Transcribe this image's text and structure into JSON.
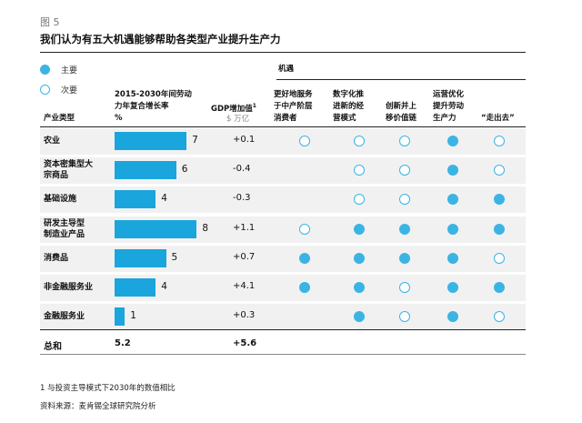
{
  "figure_label": "图 5",
  "title": "我们认为有五大机遇能够帮助各类型产业提升生产力",
  "legend": {
    "primary": "主要",
    "secondary": "次要"
  },
  "headers": {
    "opportunities_group": "机遇",
    "labor": [
      "2015-2030年间劳动",
      "力年复合增长率",
      "%"
    ],
    "gdp": "GDP增加值",
    "gdp_sup": "1",
    "gdp_unit": "$ 万亿",
    "industry_type": "产业类型",
    "opportunities": [
      [
        "更好地服务",
        "于中产阶层",
        "消费者"
      ],
      [
        "数字化推",
        "进新的经",
        "营模式"
      ],
      [
        "创新并上",
        "移价值链"
      ],
      [
        "运营优化",
        "提升劳动",
        "生产力"
      ],
      [
        "“走出去”"
      ]
    ]
  },
  "colors": {
    "accent": "#3bb4e4",
    "bar": "#1aa6dc"
  },
  "rows": [
    {
      "label": [
        "农业"
      ],
      "labor_growth": 7,
      "labor_label": "7",
      "gdp": "+0.1",
      "opps": [
        "secondary",
        "secondary",
        "secondary",
        "primary",
        "secondary"
      ]
    },
    {
      "label": [
        "资本密集型大",
        "宗商品"
      ],
      "labor_growth": 6,
      "labor_label": "6",
      "gdp": "-0.4",
      "opps": [
        "",
        "secondary",
        "secondary",
        "primary",
        "secondary"
      ]
    },
    {
      "label": [
        "基础设施"
      ],
      "labor_growth": 4,
      "labor_label": "4",
      "gdp": "-0.3",
      "opps": [
        "",
        "secondary",
        "secondary",
        "primary",
        "primary"
      ]
    },
    {
      "label": [
        "研发主导型",
        "制造业产品"
      ],
      "labor_growth": 8,
      "labor_label": "8",
      "gdp": "+1.1",
      "opps": [
        "secondary",
        "primary",
        "primary",
        "primary",
        "primary"
      ]
    },
    {
      "label": [
        "消费品"
      ],
      "labor_growth": 5,
      "labor_label": "5",
      "gdp": "+0.7",
      "opps": [
        "primary",
        "primary",
        "primary",
        "primary",
        "secondary"
      ]
    },
    {
      "label": [
        "非金融服务业"
      ],
      "labor_growth": 4,
      "labor_label": "4",
      "gdp": "+4.1",
      "opps": [
        "primary",
        "primary",
        "secondary",
        "primary",
        "primary"
      ]
    },
    {
      "label": [
        "金融服务业"
      ],
      "labor_growth": 1,
      "labor_label": "1",
      "gdp": "+0.3",
      "opps": [
        "",
        "primary",
        "secondary",
        "primary",
        "secondary"
      ]
    }
  ],
  "total": {
    "label": "总和",
    "labor": "5.2",
    "gdp": "+5.6"
  },
  "footnotes": {
    "note_num": "1",
    "note_text": "与投资主导模式下2030年的数值相比",
    "source": "资料来源：麦肯锡全球研究院分析"
  }
}
